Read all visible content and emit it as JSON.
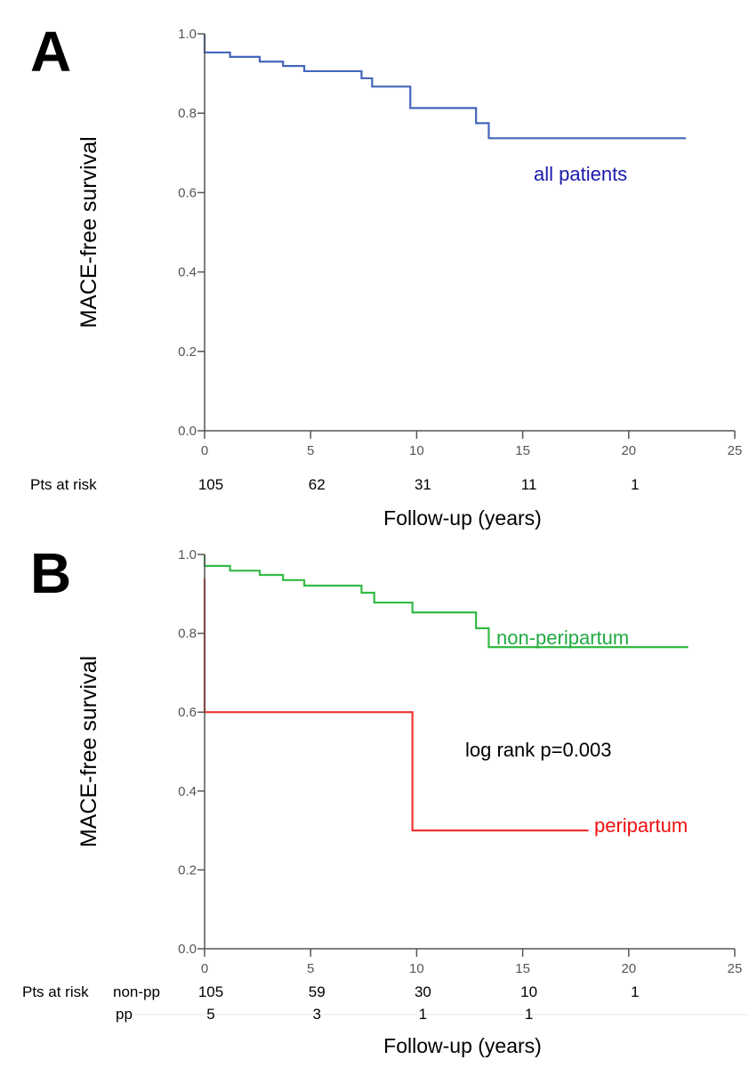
{
  "chart_data": [
    {
      "panel": "A",
      "type": "line",
      "subtype": "kaplan-meier step",
      "title": "",
      "ylabel": "MACE-free survival",
      "xlabel": "Follow-up (years)",
      "ylim": [
        0,
        1
      ],
      "xlim": [
        0,
        25
      ],
      "yticks": [
        "0.0",
        "0.2",
        "0.4",
        "0.6",
        "0.8",
        "1.0"
      ],
      "xticks": [
        "0",
        "5",
        "10",
        "15",
        "20",
        "25"
      ],
      "grid": false,
      "series": [
        {
          "name": "all patients",
          "color": "#4466bb",
          "label_color": "#1a1aaa",
          "x": [
            0,
            0,
            1.2,
            2.6,
            3.7,
            4.7,
            7.4,
            7.9,
            9.7,
            12.8,
            13.4,
            22.7
          ],
          "y": [
            1.0,
            0.953,
            0.942,
            0.93,
            0.919,
            0.906,
            0.888,
            0.867,
            0.813,
            0.775,
            0.737,
            0.737
          ]
        }
      ],
      "annotations": [],
      "risk_table": {
        "label": "Pts at risk",
        "rows": [
          {
            "group": "",
            "values": [
              "105",
              "62",
              "31",
              "11",
              "1"
            ]
          }
        ]
      }
    },
    {
      "panel": "B",
      "type": "line",
      "subtype": "kaplan-meier step",
      "title": "",
      "ylabel": "MACE-free survival",
      "xlabel": "Follow-up (years)",
      "ylim": [
        0,
        1
      ],
      "xlim": [
        0,
        25
      ],
      "yticks": [
        "0.0",
        "0.2",
        "0.4",
        "0.6",
        "0.8",
        "1.0"
      ],
      "xticks": [
        "0",
        "5",
        "10",
        "15",
        "20",
        "25"
      ],
      "grid": false,
      "series": [
        {
          "name": "non-peripartum",
          "color": "#33bb44",
          "label_color": "#22aa44",
          "x": [
            0,
            0,
            1.2,
            2.6,
            3.7,
            4.7,
            7.4,
            8.0,
            9.8,
            12.8,
            13.4,
            22.8
          ],
          "y": [
            1.0,
            0.971,
            0.959,
            0.948,
            0.935,
            0.921,
            0.903,
            0.878,
            0.853,
            0.813,
            0.765,
            0.765
          ]
        },
        {
          "name": "peripartum",
          "color": "#ee3333",
          "label_color": "#ee1111",
          "x": [
            0,
            0,
            9.8,
            9.8,
            18.1
          ],
          "y": [
            0.94,
            0.6,
            0.6,
            0.3,
            0.3
          ]
        }
      ],
      "annotations": [
        "log rank p=0.003"
      ],
      "risk_table": {
        "label": "Pts at risk",
        "rows": [
          {
            "group": "non-pp",
            "values": [
              "105",
              "59",
              "30",
              "10",
              "1"
            ]
          },
          {
            "group": "pp",
            "values": [
              "5",
              "3",
              "1",
              "1",
              ""
            ]
          }
        ]
      }
    }
  ],
  "panels": {
    "a_letter": "A",
    "b_letter": "B"
  }
}
